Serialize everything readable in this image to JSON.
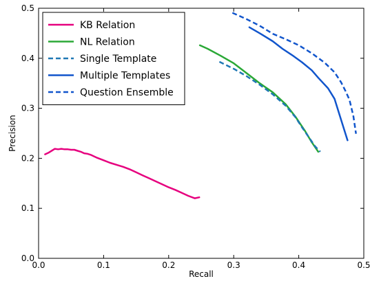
{
  "chart_data": {
    "type": "line",
    "title": "",
    "xlabel": "Recall",
    "ylabel": "Precision",
    "xlim": [
      0.0,
      0.5
    ],
    "ylim": [
      0.0,
      0.5
    ],
    "xticks": [
      "0.0",
      "0.1",
      "0.2",
      "0.3",
      "0.4",
      "0.5"
    ],
    "yticks": [
      "0.0",
      "0.1",
      "0.2",
      "0.3",
      "0.4",
      "0.5"
    ],
    "grid": false,
    "legend_position": "top-left",
    "series": [
      {
        "name": "KB Relation",
        "color": "#e6007e",
        "dash": "solid",
        "x": [
          0.01,
          0.015,
          0.02,
          0.025,
          0.03,
          0.035,
          0.04,
          0.045,
          0.05,
          0.055,
          0.06,
          0.065,
          0.07,
          0.075,
          0.08,
          0.09,
          0.1,
          0.11,
          0.12,
          0.13,
          0.14,
          0.15,
          0.16,
          0.17,
          0.18,
          0.19,
          0.2,
          0.21,
          0.22,
          0.23,
          0.24,
          0.247
        ],
        "y": [
          0.208,
          0.211,
          0.215,
          0.219,
          0.218,
          0.219,
          0.218,
          0.218,
          0.217,
          0.217,
          0.215,
          0.213,
          0.21,
          0.209,
          0.207,
          0.201,
          0.196,
          0.191,
          0.187,
          0.183,
          0.178,
          0.172,
          0.166,
          0.16,
          0.154,
          0.148,
          0.142,
          0.137,
          0.131,
          0.125,
          0.12,
          0.122
        ]
      },
      {
        "name": "NL Relation",
        "color": "#2aa836",
        "dash": "solid",
        "x": [
          0.248,
          0.26,
          0.28,
          0.3,
          0.32,
          0.34,
          0.36,
          0.38,
          0.395,
          0.41,
          0.42,
          0.43
        ],
        "y": [
          0.426,
          0.419,
          0.405,
          0.39,
          0.37,
          0.35,
          0.332,
          0.308,
          0.283,
          0.254,
          0.232,
          0.213
        ]
      },
      {
        "name": "Single Template",
        "color": "#1f78b4",
        "dash": "dashed",
        "x": [
          0.278,
          0.3,
          0.32,
          0.34,
          0.36,
          0.38,
          0.395,
          0.405,
          0.415,
          0.425,
          0.433
        ],
        "y": [
          0.393,
          0.379,
          0.364,
          0.347,
          0.328,
          0.305,
          0.282,
          0.262,
          0.243,
          0.224,
          0.213
        ]
      },
      {
        "name": "Multiple Templates",
        "color": "#1155cc",
        "dash": "solid",
        "x": [
          0.324,
          0.34,
          0.36,
          0.375,
          0.39,
          0.405,
          0.42,
          0.43,
          0.445,
          0.455,
          0.465,
          0.475
        ],
        "y": [
          0.462,
          0.45,
          0.434,
          0.419,
          0.406,
          0.392,
          0.376,
          0.361,
          0.34,
          0.319,
          0.277,
          0.236
        ]
      },
      {
        "name": "Question Ensemble",
        "color": "#1155cc",
        "dash": "dashed",
        "x": [
          0.298,
          0.32,
          0.34,
          0.36,
          0.38,
          0.4,
          0.42,
          0.44,
          0.455,
          0.465,
          0.472,
          0.478,
          0.484,
          0.488
        ],
        "y": [
          0.491,
          0.478,
          0.465,
          0.449,
          0.438,
          0.426,
          0.41,
          0.391,
          0.372,
          0.352,
          0.334,
          0.317,
          0.284,
          0.249
        ]
      }
    ]
  }
}
